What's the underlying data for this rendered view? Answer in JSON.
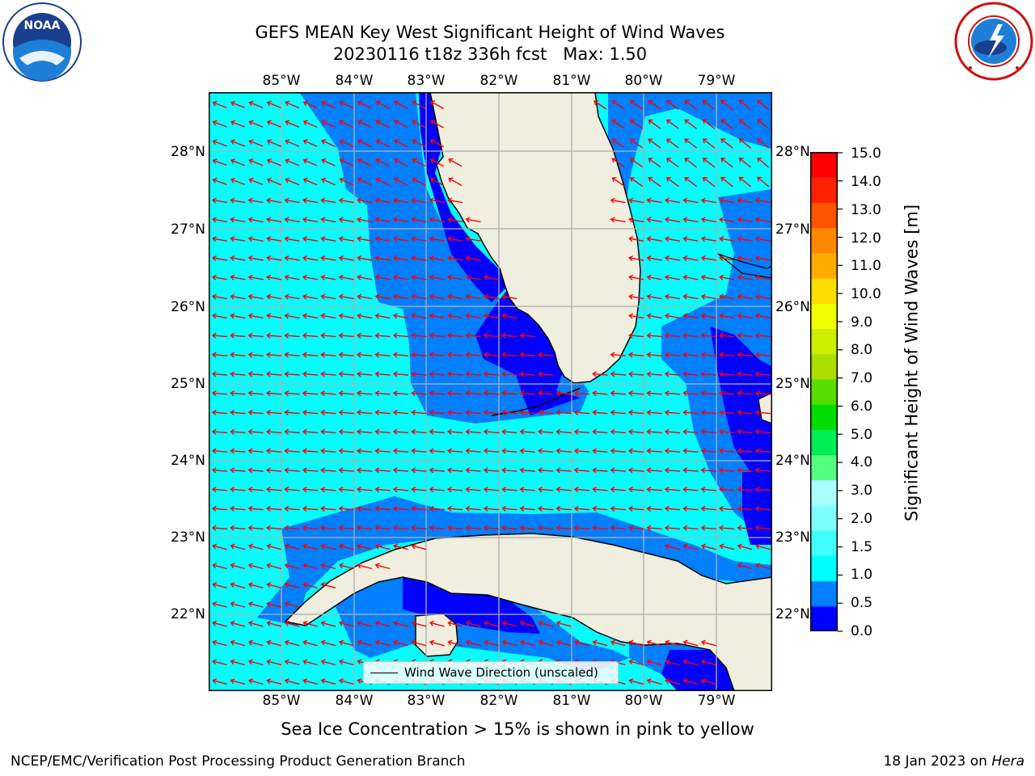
{
  "title": {
    "line1": "GEFS MEAN Key West Significant Height of Wind Waves",
    "line2": "20230116 t18z 336h fcst   Max: 1.50"
  },
  "map": {
    "lon_labels": [
      "85°W",
      "84°W",
      "83°W",
      "82°W",
      "81°W",
      "80°W",
      "79°W"
    ],
    "lat_labels": [
      "28°N",
      "27°N",
      "26°N",
      "25°N",
      "24°N",
      "23°N",
      "22°N"
    ],
    "legend_label": "Wind Wave Direction (unscaled)",
    "colors": {
      "ocean_light": "#00ffff",
      "ocean_mid": "#007fff",
      "ocean_deep": "#0000ff",
      "land": "#efeedf",
      "arrows": "#ff0000",
      "grid": "#b0b0b0"
    }
  },
  "colorbar": {
    "title": "Significant Height of Wind Waves [m]",
    "levels": [
      "15.0",
      "14.0",
      "13.0",
      "12.0",
      "11.0",
      "10.0",
      "9.0",
      "8.0",
      "7.0",
      "6.0",
      "5.0",
      "4.0",
      "3.0",
      "2.0",
      "1.5",
      "1.0",
      "0.5",
      "0.0"
    ],
    "colors_bottom_to_top": [
      "#0000ff",
      "#007fff",
      "#00ffff",
      "#40ffff",
      "#80ffff",
      "#aaffff",
      "#55ff80",
      "#00ee55",
      "#00dd00",
      "#55dd00",
      "#aadd00",
      "#ccee00",
      "#eeff00",
      "#ffdd00",
      "#ffaa00",
      "#ff8800",
      "#ff5500",
      "#ff2200",
      "#ff0000"
    ]
  },
  "notes": {
    "sea_ice": "Sea Ice Concentration > 15% is shown in pink to yellow",
    "footer_left": "NCEP/EMC/Verification Post Processing Product Generation Branch",
    "footer_right_prefix": "18 Jan 2023 on ",
    "footer_right_host": "Hera"
  },
  "logos": {
    "noaa_text": "NOAA",
    "noaa_ring": "NATIONAL OCEANIC AND ATMOSPHERIC ADMINISTRATION · U.S. DEPARTMENT OF COMMERCE",
    "nws_ring": "NATIONAL WEATHER SERVICE"
  }
}
